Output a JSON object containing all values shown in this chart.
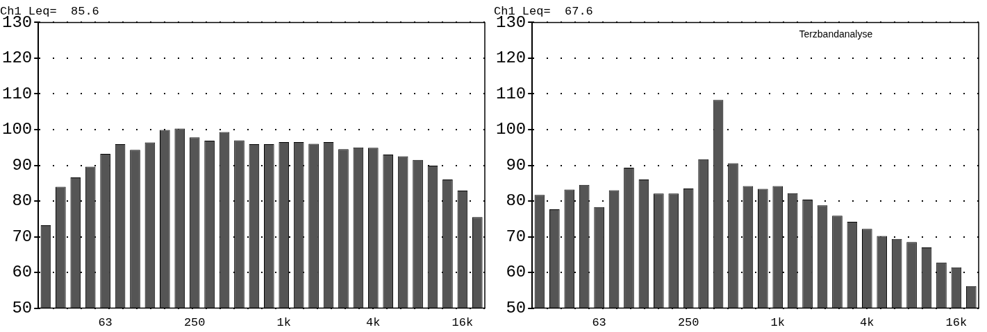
{
  "chart_data": [
    {
      "type": "bar",
      "title": "Ch1 Leq=  85.6",
      "categories": [
        null,
        null,
        null,
        null,
        "63",
        null,
        null,
        null,
        null,
        null,
        "250",
        null,
        null,
        null,
        null,
        null,
        "1k",
        null,
        null,
        null,
        null,
        null,
        "4k",
        null,
        null,
        null,
        null,
        null,
        "16k",
        null
      ],
      "values": [
        73.2,
        84,
        86.6,
        89.6,
        93.2,
        95.9,
        94.3,
        96.4,
        99.9,
        100.3,
        97.8,
        96.9,
        99.3,
        97,
        95.9,
        95.9,
        96.5,
        96.5,
        96,
        96.5,
        94.5,
        95,
        94.9,
        93,
        92.5,
        91.5,
        89.9,
        86,
        82.9,
        75.5
      ],
      "color": "#555555",
      "ylim": [
        50,
        130
      ],
      "yticks": [
        50,
        60,
        70,
        80,
        90,
        100,
        110,
        120,
        130
      ],
      "grid": "y",
      "legend": false
    },
    {
      "type": "bar",
      "title": "Ch1 Leq=  67.6",
      "annotations": [
        "Terzbandanalyse"
      ],
      "categories": [
        null,
        null,
        null,
        null,
        "63",
        null,
        null,
        null,
        null,
        null,
        "250",
        null,
        null,
        null,
        null,
        null,
        "1k",
        null,
        null,
        null,
        null,
        null,
        "4k",
        null,
        null,
        null,
        null,
        null,
        "16k",
        null
      ],
      "values": [
        81.7,
        77.7,
        83.2,
        84.5,
        78.3,
        83,
        89.3,
        86,
        82.1,
        82.1,
        83.5,
        91.7,
        108.3,
        90.6,
        84.2,
        83.4,
        84.2,
        82.2,
        80.4,
        78.8,
        75.9,
        74.2,
        72.2,
        70.2,
        69.4,
        68.5,
        67,
        62.8,
        61.4,
        56.2
      ],
      "color": "#555555",
      "ylim": [
        50,
        130
      ],
      "yticks": [
        50,
        60,
        70,
        80,
        90,
        100,
        110,
        120,
        130
      ],
      "grid": "y",
      "legend": false
    }
  ]
}
